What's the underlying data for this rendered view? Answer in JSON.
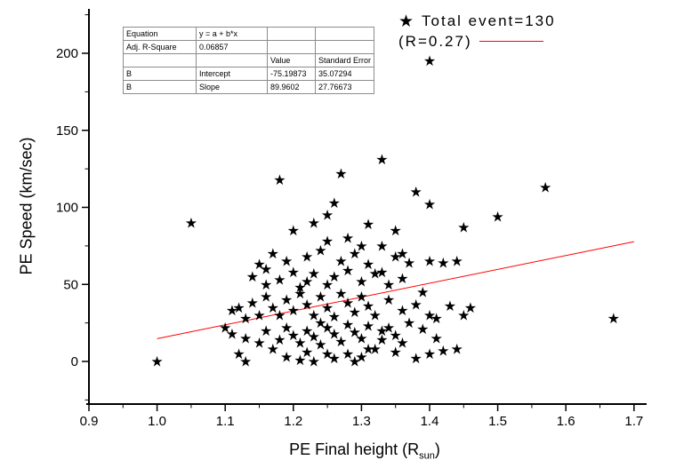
{
  "figure": {
    "background": "#ffffff",
    "axis_color": "#000000",
    "marker_color": "#000000",
    "fit_line_color": "#ff0000"
  },
  "chart_data": {
    "type": "scatter",
    "title": "",
    "xlabel": "PE Final height (R_sun)",
    "xlabel_prefix": "PE Final height (R",
    "xlabel_sub": "sun",
    "xlabel_suffix": ")",
    "ylabel": "PE Speed (km/sec)",
    "xlim": [
      0.9,
      1.75
    ],
    "ylim": [
      -28,
      228
    ],
    "x_ticks": [
      0.9,
      1.0,
      1.1,
      1.2,
      1.3,
      1.4,
      1.5,
      1.6,
      1.7
    ],
    "y_ticks": [
      0,
      50,
      100,
      150,
      200
    ],
    "y_minor_ticks": [
      -25,
      25,
      75,
      125,
      175,
      225
    ],
    "grid": false,
    "legend_position": "top-right",
    "legend_labels": [
      "Total event=130",
      "(R=0.27)"
    ],
    "total_events": 130,
    "fit_line": {
      "equation": "y = a + b*x",
      "intercept": -75.19873,
      "slope": 89.9602,
      "r": 0.27,
      "x_start": 1.0,
      "x_end": 1.7
    },
    "points": [
      [
        1.0,
        0
      ],
      [
        1.05,
        90
      ],
      [
        1.4,
        195
      ],
      [
        1.33,
        131
      ],
      [
        1.18,
        118
      ],
      [
        1.27,
        122
      ],
      [
        1.57,
        113
      ],
      [
        1.38,
        110
      ],
      [
        1.4,
        102
      ],
      [
        1.26,
        103
      ],
      [
        1.5,
        94
      ],
      [
        1.31,
        89
      ],
      [
        1.35,
        85
      ],
      [
        1.45,
        87
      ],
      [
        1.67,
        28
      ],
      [
        1.25,
        95
      ],
      [
        1.3,
        75
      ],
      [
        1.12,
        5
      ],
      [
        1.13,
        0
      ],
      [
        1.17,
        8
      ],
      [
        1.19,
        3
      ],
      [
        1.21,
        1
      ],
      [
        1.22,
        6
      ],
      [
        1.23,
        0
      ],
      [
        1.26,
        2
      ],
      [
        1.28,
        5
      ],
      [
        1.3,
        3
      ],
      [
        1.32,
        8
      ],
      [
        1.35,
        6
      ],
      [
        1.38,
        2
      ],
      [
        1.4,
        5
      ],
      [
        1.42,
        7
      ],
      [
        1.36,
        12
      ],
      [
        1.33,
        14
      ],
      [
        1.11,
        18
      ],
      [
        1.13,
        15
      ],
      [
        1.15,
        12
      ],
      [
        1.16,
        20
      ],
      [
        1.18,
        14
      ],
      [
        1.19,
        22
      ],
      [
        1.2,
        17
      ],
      [
        1.21,
        12
      ],
      [
        1.22,
        20
      ],
      [
        1.23,
        16
      ],
      [
        1.24,
        11
      ],
      [
        1.25,
        22
      ],
      [
        1.26,
        18
      ],
      [
        1.27,
        13
      ],
      [
        1.28,
        24
      ],
      [
        1.29,
        19
      ],
      [
        1.3,
        15
      ],
      [
        1.31,
        23
      ],
      [
        1.33,
        20
      ],
      [
        1.35,
        17
      ],
      [
        1.37,
        25
      ],
      [
        1.39,
        21
      ],
      [
        1.41,
        15
      ],
      [
        1.24,
        25
      ],
      [
        1.12,
        35
      ],
      [
        1.14,
        38
      ],
      [
        1.15,
        30
      ],
      [
        1.16,
        42
      ],
      [
        1.17,
        35
      ],
      [
        1.18,
        30
      ],
      [
        1.19,
        40
      ],
      [
        1.2,
        33
      ],
      [
        1.21,
        44
      ],
      [
        1.22,
        37
      ],
      [
        1.23,
        30
      ],
      [
        1.24,
        42
      ],
      [
        1.25,
        35
      ],
      [
        1.26,
        29
      ],
      [
        1.27,
        44
      ],
      [
        1.28,
        38
      ],
      [
        1.29,
        32
      ],
      [
        1.3,
        42
      ],
      [
        1.31,
        36
      ],
      [
        1.32,
        30
      ],
      [
        1.34,
        40
      ],
      [
        1.36,
        33
      ],
      [
        1.38,
        37
      ],
      [
        1.4,
        30
      ],
      [
        1.43,
        36
      ],
      [
        1.46,
        35
      ],
      [
        1.14,
        55
      ],
      [
        1.16,
        50
      ],
      [
        1.18,
        53
      ],
      [
        1.2,
        58
      ],
      [
        1.22,
        52
      ],
      [
        1.23,
        57
      ],
      [
        1.25,
        50
      ],
      [
        1.26,
        55
      ],
      [
        1.28,
        59
      ],
      [
        1.3,
        52
      ],
      [
        1.32,
        57
      ],
      [
        1.34,
        50
      ],
      [
        1.36,
        54
      ],
      [
        1.21,
        48
      ],
      [
        1.15,
        63
      ],
      [
        1.17,
        70
      ],
      [
        1.19,
        65
      ],
      [
        1.22,
        68
      ],
      [
        1.24,
        72
      ],
      [
        1.25,
        78
      ],
      [
        1.27,
        65
      ],
      [
        1.29,
        70
      ],
      [
        1.31,
        63
      ],
      [
        1.33,
        75
      ],
      [
        1.35,
        68
      ],
      [
        1.37,
        64
      ],
      [
        1.42,
        64
      ],
      [
        1.44,
        65
      ],
      [
        1.2,
        85
      ],
      [
        1.23,
        90
      ],
      [
        1.28,
        80
      ],
      [
        1.33,
        58
      ],
      [
        1.39,
        45
      ],
      [
        1.41,
        28
      ],
      [
        1.44,
        8
      ],
      [
        1.45,
        30
      ],
      [
        1.4,
        65
      ],
      [
        1.36,
        70
      ],
      [
        1.13,
        28
      ],
      [
        1.11,
        33
      ],
      [
        1.1,
        22
      ],
      [
        1.16,
        60
      ],
      [
        1.34,
        22
      ],
      [
        1.31,
        8
      ],
      [
        1.29,
        0
      ],
      [
        1.25,
        5
      ]
    ]
  },
  "stats_table": {
    "rows": [
      [
        "Equation",
        "y = a + b*x",
        "",
        ""
      ],
      [
        "Adj. R-Square",
        "0.06857",
        "",
        ""
      ],
      [
        "",
        "",
        "Value",
        "Standard Error"
      ],
      [
        "B",
        "Intercept",
        "-75.19873",
        "35.07294"
      ],
      [
        "B",
        "Slope",
        "89.9602",
        "27.76673"
      ]
    ]
  }
}
